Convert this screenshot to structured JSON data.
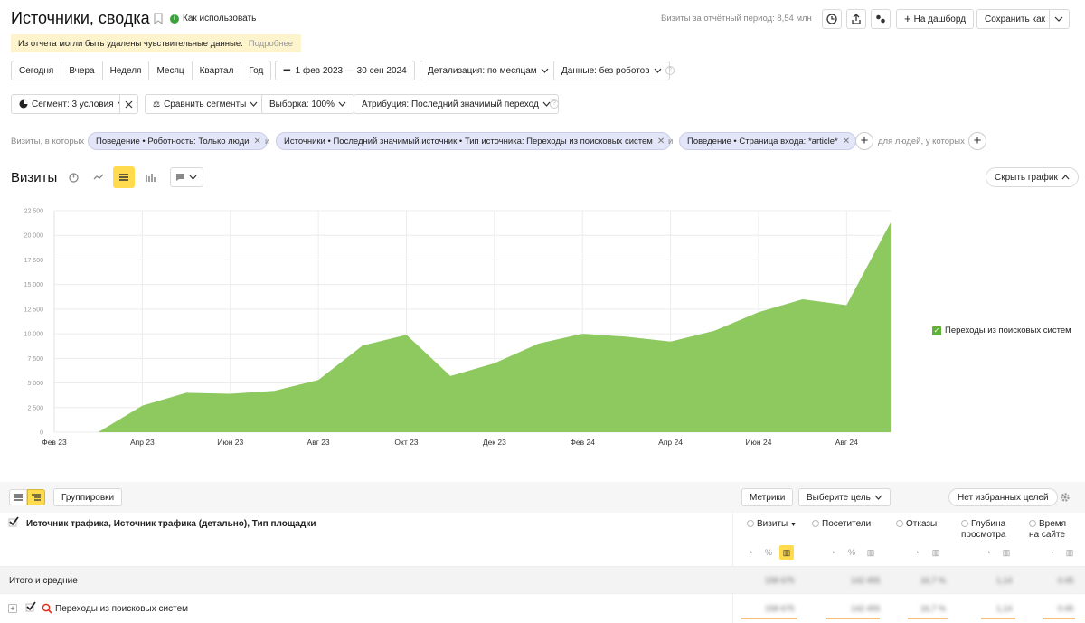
{
  "header": {
    "title": "Источники, сводка",
    "how_to_use": "Как использовать",
    "visits_period": "Визиты за отчётный период: 8,54 млн",
    "add_dashboard": "На дашборд",
    "save_as": "Сохранить как"
  },
  "notice": {
    "text": "Из отчета могли быть удалены чувствительные данные.",
    "more": "Подробнее"
  },
  "period_buttons": [
    "Сегодня",
    "Вчера",
    "Неделя",
    "Месяц",
    "Квартал",
    "Год"
  ],
  "date_range": "1 фев 2023 — 30 сен 2024",
  "detail": "Детализация: по месяцам",
  "data_filter": "Данные: без роботов",
  "segment": "Сегмент: 3 условия",
  "compare": "Сравнить сегменты",
  "sample": "Выборка: 100%",
  "attribution": "Атрибуция: Последний значимый переход",
  "filters": {
    "prefix": "Визиты, в которых",
    "conj": "и",
    "chips": [
      "Поведение • Роботность: Только люди",
      "Источники • Последний значимый источник • Тип источника: Переходы из поисковых систем",
      "Поведение • Страница входа: *article*"
    ],
    "suffix": "для людей, у которых"
  },
  "chart_header": {
    "title": "Визиты",
    "hide": "Скрыть график"
  },
  "chart_data": {
    "type": "area",
    "x": [
      "Фев 23",
      "Мар 23",
      "Апр 23",
      "Май 23",
      "Июн 23",
      "Июл 23",
      "Авг 23",
      "Сен 23",
      "Окт 23",
      "Ноя 23",
      "Дек 23",
      "Янв 24",
      "Фев 24",
      "Мар 24",
      "Апр 24",
      "Май 24",
      "Июн 24",
      "Июл 24",
      "Авг 24",
      "Сен 24"
    ],
    "xticks": [
      "Фев 23",
      "Апр 23",
      "Июн 23",
      "Авг 23",
      "Окт 23",
      "Дек 23",
      "Фев 24",
      "Апр 24",
      "Июн 24",
      "Авг 24"
    ],
    "yticks": [
      "0",
      "2 500",
      "5 000",
      "7 500",
      "10 000",
      "12 500",
      "15 000",
      "17 500",
      "20 000",
      "22 500"
    ],
    "ylim": [
      0,
      22500
    ],
    "series": [
      {
        "name": "Переходы из поисковых систем",
        "color": "#8dc95e",
        "values": [
          0,
          0,
          2700,
          4000,
          3900,
          4200,
          5300,
          8800,
          9900,
          5700,
          7000,
          9000,
          10000,
          9700,
          9200,
          10300,
          12200,
          13500,
          12900,
          21300
        ]
      }
    ],
    "legend": "right"
  },
  "table": {
    "toolbar": {
      "groupings": "Группировки",
      "metrics": "Метрики",
      "goal": "Выберите цель",
      "no_goals": "Нет избранных целей"
    },
    "dimension_header": "Источник трафика, Источник трафика (детально), Тип площадки",
    "columns": [
      {
        "label": "Визиты",
        "sorted": "▼"
      },
      {
        "label": "Посетители"
      },
      {
        "label": "Отказы"
      },
      {
        "label": "Глубина просмотра"
      },
      {
        "label": "Время на сайте"
      }
    ],
    "totals_label": "Итого и средние",
    "rows": [
      {
        "label": "Переходы из поисковых систем"
      }
    ],
    "obscured_values": [
      "158 675",
      "142 455",
      "16,7 %",
      "1,14",
      "0:45"
    ]
  },
  "colors": {
    "accent_yellow": "#ffdb4d",
    "area_green": "#8dc95e",
    "chip_bg": "#e3e6f8",
    "notice_bg": "#fdf3cc"
  }
}
